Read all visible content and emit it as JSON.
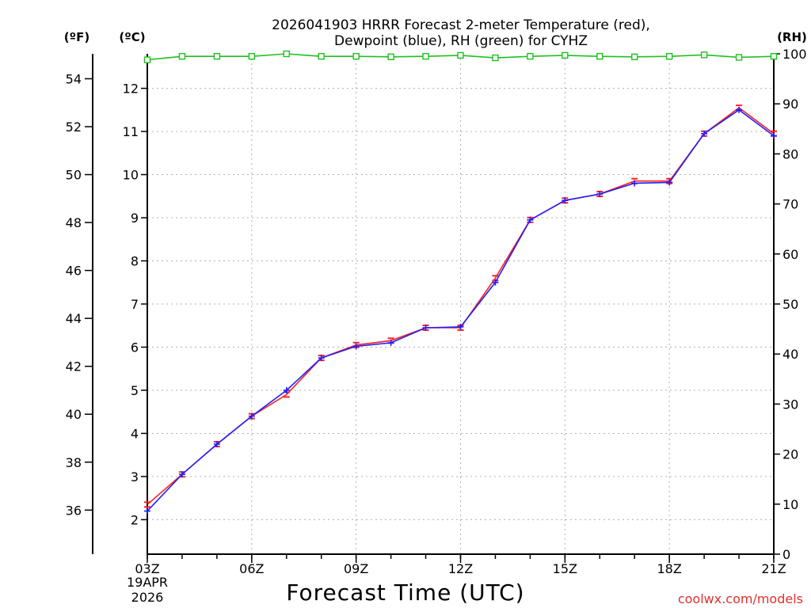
{
  "chart_data": {
    "type": "line",
    "title_line1": "2026041903 HRRR Forecast 2-meter Temperature (red),",
    "title_line2": "Dewpoint (blue), RH (green) for CYHZ",
    "xlabel": "Forecast Time (UTC)",
    "left_outer_unit": "(ºF)",
    "left_inner_unit": "(ºC)",
    "right_unit": "(RH)",
    "watermark": "coolwx.com/models",
    "date_label": [
      "19APR",
      "2026"
    ],
    "x": [
      3,
      4,
      5,
      6,
      7,
      8,
      9,
      10,
      11,
      12,
      13,
      14,
      15,
      16,
      17,
      18,
      19,
      20,
      21
    ],
    "xlim": [
      3,
      21
    ],
    "x_ticks": [
      3,
      6,
      9,
      12,
      15,
      18,
      21
    ],
    "x_tick_labels": [
      "03Z",
      "06Z",
      "09Z",
      "12Z",
      "15Z",
      "18Z",
      "21Z"
    ],
    "celsius_ylim": [
      1.2,
      12.8
    ],
    "celsius_ticks": [
      "2",
      "3",
      "4",
      "5",
      "6",
      "7",
      "8",
      "9",
      "10",
      "11",
      "12"
    ],
    "fahrenheit_ticks": [
      "36",
      "38",
      "40",
      "42",
      "44",
      "46",
      "48",
      "50",
      "52",
      "54"
    ],
    "rh_ylim": [
      0,
      100
    ],
    "rh_ticks": [
      "0",
      "10",
      "20",
      "30",
      "40",
      "50",
      "60",
      "70",
      "80",
      "90",
      "100"
    ],
    "series": [
      {
        "name": "Temperature",
        "axis": "celsius",
        "color": "#ff2020",
        "marker": "tee",
        "values": [
          2.35,
          3.05,
          3.75,
          4.4,
          4.9,
          5.75,
          6.05,
          6.15,
          6.45,
          6.45,
          7.6,
          8.95,
          9.4,
          9.55,
          9.85,
          9.85,
          10.95,
          11.55,
          10.95
        ]
      },
      {
        "name": "Dewpoint",
        "axis": "celsius",
        "color": "#2020ff",
        "marker": "plus",
        "values": [
          2.2,
          3.05,
          3.75,
          4.4,
          5.0,
          5.75,
          6.02,
          6.1,
          6.45,
          6.47,
          7.5,
          8.95,
          9.4,
          9.55,
          9.8,
          9.82,
          10.95,
          11.5,
          10.9
        ]
      },
      {
        "name": "RH",
        "axis": "rh",
        "color": "#20c020",
        "marker": "square",
        "values": [
          98.8,
          99.5,
          99.5,
          99.5,
          100,
          99.5,
          99.5,
          99.4,
          99.5,
          99.7,
          99.2,
          99.5,
          99.7,
          99.5,
          99.4,
          99.5,
          99.8,
          99.3,
          99.5
        ]
      }
    ]
  }
}
